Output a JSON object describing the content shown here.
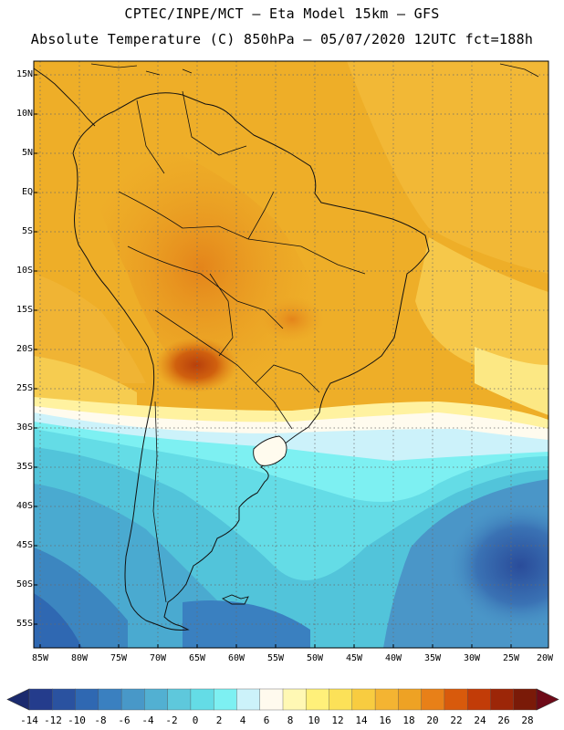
{
  "header": {
    "line1": "CPTEC/INPE/MCT –  Eta Model 15km – GFS",
    "line2": "Absolute Temperature (C) 850hPa – 05/07/2020 12UTC fct=188h"
  },
  "map": {
    "lat_labels": [
      "15N",
      "10N",
      "5N",
      "EQ",
      "5S",
      "10S",
      "15S",
      "20S",
      "25S",
      "30S",
      "35S",
      "40S",
      "45S",
      "50S",
      "55S"
    ],
    "lon_labels": [
      "85W",
      "80W",
      "75W",
      "70W",
      "65W",
      "60W",
      "55W",
      "50W",
      "45W",
      "40W",
      "35W",
      "30W",
      "25W",
      "20W"
    ]
  },
  "colorbar": {
    "labels": [
      "-14",
      "-12",
      "-10",
      "-8",
      "-6",
      "-4",
      "-2",
      "0",
      "2",
      "4",
      "6",
      "8",
      "10",
      "12",
      "14",
      "16",
      "18",
      "20",
      "22",
      "24",
      "26",
      "28"
    ],
    "colors": [
      "#243c8c",
      "#2a52a0",
      "#2f68b2",
      "#3a80c0",
      "#4898c8",
      "#52b0d2",
      "#5ec8dc",
      "#64dce6",
      "#7df0f2",
      "#ccf2fa",
      "#fffaee",
      "#fff8b4",
      "#fff07a",
      "#fce158",
      "#f8cc40",
      "#f4b432",
      "#eea224",
      "#e88018",
      "#d85a0c",
      "#c23c08",
      "#9c2608",
      "#7a1a08"
    ],
    "tip_low_color": "#1b2a6e",
    "tip_high_color": "#6e0a18"
  }
}
